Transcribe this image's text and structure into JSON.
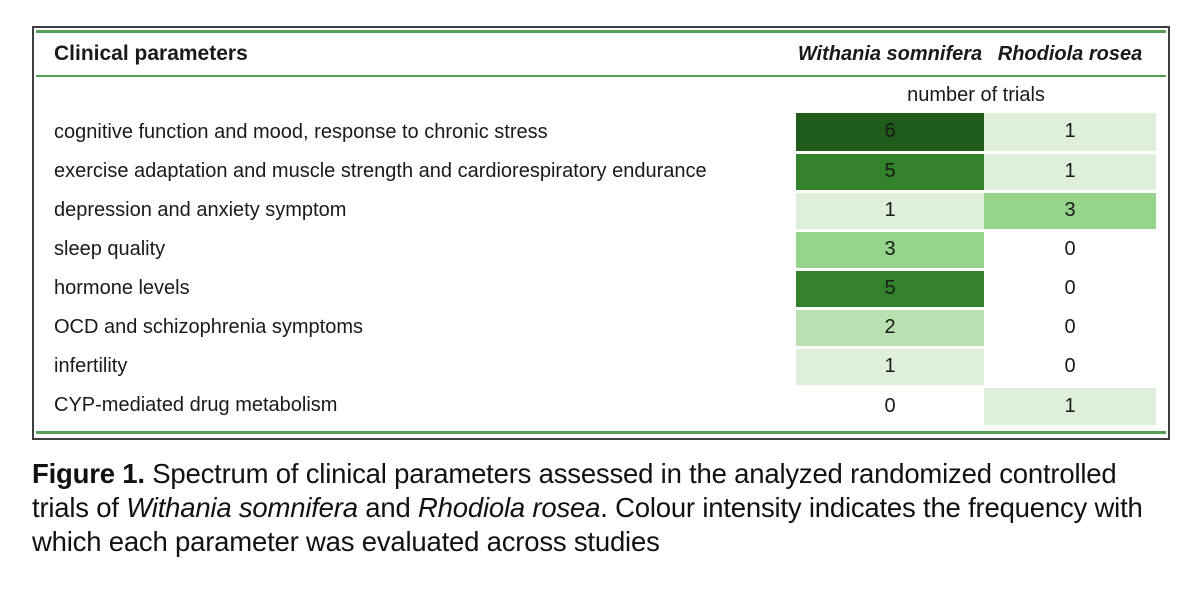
{
  "figure": {
    "table": {
      "col1_header": "Clinical parameters",
      "species": [
        "Withania somnifera",
        "Rhodiola rosea"
      ],
      "subheader": "number of trials",
      "rows": [
        {
          "label": "cognitive function and mood, response to chronic stress",
          "withania": 6,
          "rhodiola": 1
        },
        {
          "label": "exercise adaptation and muscle strength and cardiorespiratory endurance",
          "withania": 5,
          "rhodiola": 1
        },
        {
          "label": "depression and anxiety symptom",
          "withania": 1,
          "rhodiola": 3
        },
        {
          "label": "sleep quality",
          "withania": 3,
          "rhodiola": 0
        },
        {
          "label": "hormone levels",
          "withania": 5,
          "rhodiola": 0
        },
        {
          "label": "OCD and schizophrenia symptoms",
          "withania": 2,
          "rhodiola": 0
        },
        {
          "label": "infertility",
          "withania": 1,
          "rhodiola": 0
        },
        {
          "label": "CYP-mediated drug metabolism",
          "withania": 0,
          "rhodiola": 1
        }
      ]
    },
    "colors": {
      "scale": {
        "0": "#ffffff",
        "1": "#def0da",
        "2": "#b9e1b0",
        "3": "#96d38b",
        "5": "#31822a",
        "6": "#1f5c19"
      },
      "line_green": "#55a055",
      "border_dark": "#3f3f3f"
    },
    "caption": {
      "segments": [
        {
          "text": "Figure 1.",
          "style": "bold"
        },
        {
          "text": " Spectrum of clinical parameters assessed in the analyzed randomized controlled trials of ",
          "style": "normal"
        },
        {
          "text": "Withania somnifera",
          "style": "italic"
        },
        {
          "text": " and ",
          "style": "normal"
        },
        {
          "text": "Rhodiola rosea",
          "style": "italic"
        },
        {
          "text": ". Colour intensity indicates the frequency with which each parameter was evaluated across studies",
          "style": "normal"
        }
      ]
    }
  },
  "chart_data": {
    "type": "heatmap",
    "title": "Figure 1. Spectrum of clinical parameters assessed in the analyzed randomized controlled trials of Withania somnifera and Rhodiola rosea",
    "rows": [
      "cognitive function and mood, response to chronic stress",
      "exercise adaptation and muscle strength and cardiorespiratory endurance",
      "depression and anxiety symptom",
      "sleep quality",
      "hormone levels",
      "OCD and schizophrenia symptoms",
      "infertility",
      "CYP-mediated drug metabolism"
    ],
    "columns": [
      "Withania somnifera",
      "Rhodiola rosea"
    ],
    "values": [
      [
        6,
        1
      ],
      [
        5,
        1
      ],
      [
        1,
        3
      ],
      [
        3,
        0
      ],
      [
        5,
        0
      ],
      [
        2,
        0
      ],
      [
        1,
        0
      ],
      [
        0,
        1
      ]
    ],
    "value_label": "number of trials",
    "legend_note": "Colour intensity indicates the frequency with which each parameter was evaluated across studies"
  }
}
